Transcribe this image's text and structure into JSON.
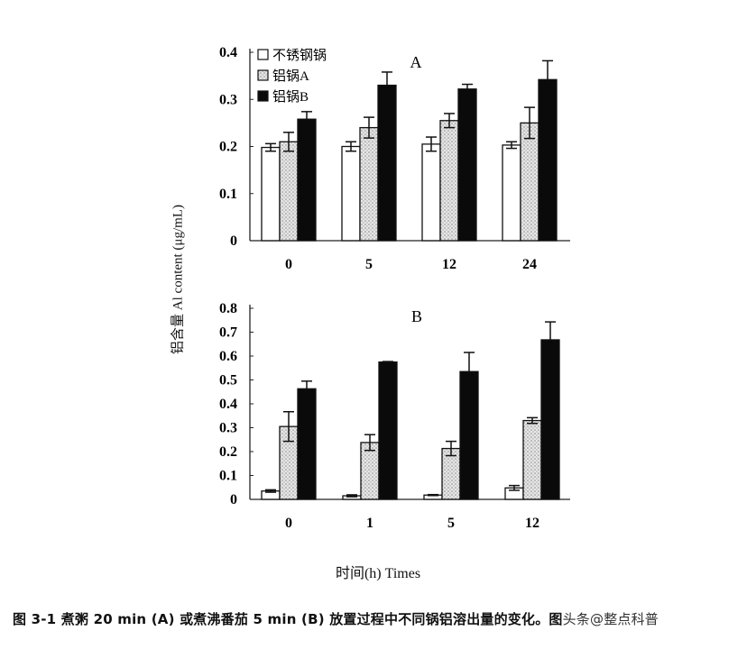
{
  "figure": {
    "caption": "图 3-1  煮粥 20 min (A) 或煮沸番茄 5 min (B) 放置过程中不同锅铝溶出量的变化。图",
    "watermark": "头条@整点科普",
    "y_axis_title": "铝含量  Al content (μg/mL)",
    "x_axis_title": "时间(h) Times"
  },
  "colors": {
    "stainless": "#ffffff",
    "aluminum_a": "#d8d8d8",
    "aluminum_b": "#0a0a0a",
    "axis": "#222222"
  },
  "chart_data": [
    {
      "type": "bar",
      "title": "A",
      "xlabel": "时间(h) Times",
      "ylabel": "铝含量 Al content (μg/mL)",
      "categories": [
        "0",
        "5",
        "12",
        "24"
      ],
      "ylim": [
        0,
        0.4
      ],
      "yticks": [
        0,
        0.1,
        0.2,
        0.3,
        0.4
      ],
      "ytick_labels": [
        "0",
        "0.1",
        "0.2",
        "0.3",
        "0.4"
      ],
      "grid": false,
      "legend_position": "upper left",
      "series": [
        {
          "name": "不锈钢锅",
          "fill": "white",
          "values": [
            0.198,
            0.2,
            0.205,
            0.203
          ],
          "errors": [
            0.008,
            0.01,
            0.015,
            0.007
          ]
        },
        {
          "name": "铝锅A",
          "fill": "dotted-gray",
          "values": [
            0.21,
            0.24,
            0.255,
            0.25
          ],
          "errors": [
            0.02,
            0.022,
            0.015,
            0.033
          ]
        },
        {
          "name": "铝锅B",
          "fill": "black",
          "values": [
            0.258,
            0.33,
            0.322,
            0.342
          ],
          "errors": [
            0.016,
            0.028,
            0.01,
            0.04
          ]
        }
      ]
    },
    {
      "type": "bar",
      "title": "B",
      "xlabel": "时间(h) Times",
      "ylabel": "铝含量 Al content (μg/mL)",
      "categories": [
        "0",
        "1",
        "5",
        "12"
      ],
      "ylim": [
        0,
        0.8
      ],
      "yticks": [
        0,
        0.1,
        0.2,
        0.3,
        0.4,
        0.5,
        0.6,
        0.7,
        0.8
      ],
      "ytick_labels": [
        "0",
        "0.1",
        "0.2",
        "0.3",
        "0.4",
        "0.5",
        "0.6",
        "0.7",
        "0.8"
      ],
      "grid": false,
      "legend_position": "none",
      "series": [
        {
          "name": "不锈钢锅",
          "fill": "white",
          "values": [
            0.035,
            0.015,
            0.018,
            0.048
          ],
          "errors": [
            0.005,
            0.004,
            0.002,
            0.01
          ]
        },
        {
          "name": "铝锅A",
          "fill": "dotted-gray",
          "values": [
            0.305,
            0.238,
            0.213,
            0.33
          ],
          "errors": [
            0.062,
            0.033,
            0.03,
            0.012
          ]
        },
        {
          "name": "铝锅B",
          "fill": "black",
          "values": [
            0.463,
            0.575,
            0.535,
            0.668
          ],
          "errors": [
            0.032,
            0.002,
            0.08,
            0.075
          ]
        }
      ]
    }
  ]
}
